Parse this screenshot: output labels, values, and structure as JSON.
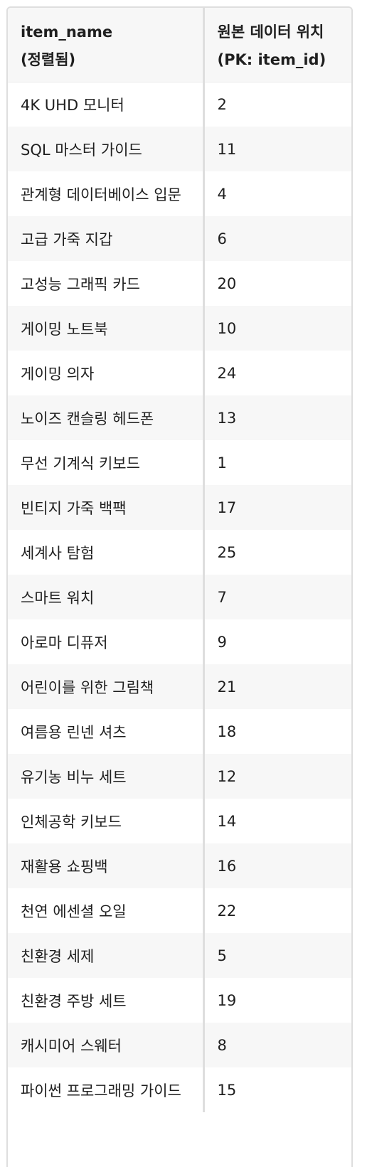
{
  "header": {
    "col1_line1": "item_name",
    "col1_line2": "(정렬됨)",
    "col2_line1": "원본 데이터 위치",
    "col2_line2": "(PK: item_id)"
  },
  "rows": [
    {
      "item_name": "4K UHD 모니터",
      "item_id": "2"
    },
    {
      "item_name": "SQL 마스터 가이드",
      "item_id": "11"
    },
    {
      "item_name": "관계형 데이터베이스 입문",
      "item_id": "4"
    },
    {
      "item_name": "고급 가죽 지갑",
      "item_id": "6"
    },
    {
      "item_name": "고성능 그래픽 카드",
      "item_id": "20"
    },
    {
      "item_name": "게이밍 노트북",
      "item_id": "10"
    },
    {
      "item_name": "게이밍 의자",
      "item_id": "24"
    },
    {
      "item_name": "노이즈 캔슬링 헤드폰",
      "item_id": "13"
    },
    {
      "item_name": "무선 기계식 키보드",
      "item_id": "1"
    },
    {
      "item_name": "빈티지 가죽 백팩",
      "item_id": "17"
    },
    {
      "item_name": "세계사 탐험",
      "item_id": "25"
    },
    {
      "item_name": "스마트 워치",
      "item_id": "7"
    },
    {
      "item_name": "아로마 디퓨저",
      "item_id": "9"
    },
    {
      "item_name": "어린이를 위한 그림책",
      "item_id": "21"
    },
    {
      "item_name": "여름용 린넨 셔츠",
      "item_id": "18"
    },
    {
      "item_name": "유기농 비누 세트",
      "item_id": "12"
    },
    {
      "item_name": "인체공학 키보드",
      "item_id": "14"
    },
    {
      "item_name": "재활용 쇼핑백",
      "item_id": "16"
    },
    {
      "item_name": "천연 에센셜 오일",
      "item_id": "22"
    },
    {
      "item_name": "친환경 세제",
      "item_id": "5"
    },
    {
      "item_name": "친환경 주방 세트",
      "item_id": "19"
    },
    {
      "item_name": "캐시미어 스웨터",
      "item_id": "8"
    },
    {
      "item_name": "파이썬 프로그래밍 가이드",
      "item_id": "15"
    }
  ]
}
